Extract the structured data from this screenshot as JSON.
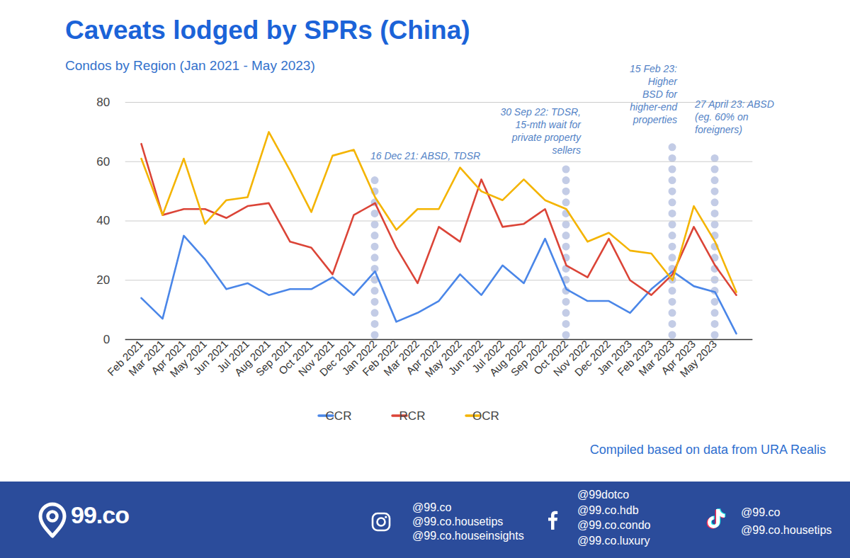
{
  "chart_data": {
    "type": "line",
    "title": "Caveats lodged by SPRs (China)",
    "subtitle": "Condos by Region (Jan 2021 - May 2023)",
    "categories": [
      "Feb 2021",
      "Mar 2021",
      "Apr 2021",
      "May 2021",
      "Jun 2021",
      "Jul 2021",
      "Aug 2021",
      "Sep 2021",
      "Oct 2021",
      "Nov 2021",
      "Dec 2021",
      "Jan 2022",
      "Feb 2022",
      "Mar 2022",
      "Apr 2022",
      "May 2022",
      "Jun 2022",
      "Jul 2022",
      "Aug 2022",
      "Sep 2022",
      "Oct 2022",
      "Nov 2022",
      "Dec 2022",
      "Jan 2023",
      "Feb 2023",
      "Mar 2023",
      "Apr 2023",
      "May 2023",
      null
    ],
    "series": [
      {
        "name": "CCR",
        "color": "#4a86e8",
        "values": [
          14,
          7,
          35,
          27,
          17,
          19,
          15,
          17,
          17,
          21,
          15,
          23,
          6,
          9,
          13,
          22,
          15,
          25,
          19,
          34,
          17,
          13,
          13,
          9,
          17,
          23,
          18,
          16,
          2
        ]
      },
      {
        "name": "RCR",
        "color": "#db4437",
        "values": [
          66,
          42,
          44,
          44,
          41,
          45,
          46,
          33,
          31,
          22,
          42,
          46,
          31,
          19,
          38,
          33,
          54,
          38,
          39,
          44,
          25,
          21,
          34,
          20,
          15,
          22,
          38,
          25,
          15
        ]
      },
      {
        "name": "OCR",
        "color": "#f4b400",
        "values": [
          61,
          42,
          61,
          39,
          47,
          48,
          70,
          57,
          43,
          62,
          64,
          48,
          37,
          44,
          44,
          58,
          50,
          47,
          54,
          47,
          44,
          33,
          36,
          30,
          29,
          20,
          45,
          33,
          16
        ]
      }
    ],
    "ylim": [
      0,
      80
    ],
    "yticks": [
      0,
      20,
      40,
      60,
      80
    ],
    "grid": true,
    "legend": "bottom",
    "annotations": [
      {
        "text": "16 Dec 21: ABSD, TDSR",
        "index": 11
      },
      {
        "text": "30 Sep 22: TDSR,\n15-mth wait for\nprivate property\nsellers",
        "index": 20
      },
      {
        "text": "15 Feb 23:\nHigher\nBSD for\nhigher-end\nproperties",
        "index": 25
      },
      {
        "text": "27 April 23: ABSD\n(eg. 60% on\nforeigners)",
        "index": 27
      }
    ],
    "source": "Compiled based on data from URA Realis"
  },
  "footer": {
    "brand": "99.co",
    "instagram": [
      "@99.co",
      "@99.co.housetips",
      "@99.co.houseinsights"
    ],
    "facebook": [
      "@99dotco",
      "@99.co.hdb",
      "@99.co.condo",
      "@99.co.luxury"
    ],
    "tiktok": [
      "@99.co",
      "@99.co.housetips"
    ]
  }
}
